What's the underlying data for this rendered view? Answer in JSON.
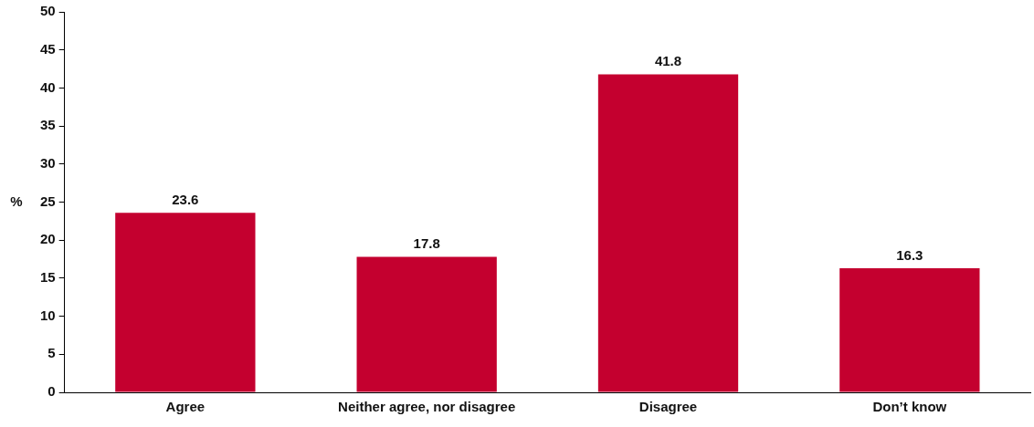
{
  "chart_data": {
    "type": "bar",
    "ylabel": "%",
    "categories": [
      "Agree",
      "Neither agree, nor disagree",
      "Disagree",
      "Don’t know"
    ],
    "values": [
      23.6,
      17.8,
      41.8,
      16.3
    ],
    "color": "#c4002f",
    "ylim": [
      0,
      50
    ],
    "yticks": [
      0,
      5,
      10,
      15,
      20,
      25,
      30,
      35,
      40,
      45,
      50
    ],
    "grid": false,
    "legend": false,
    "data_labels": true
  }
}
